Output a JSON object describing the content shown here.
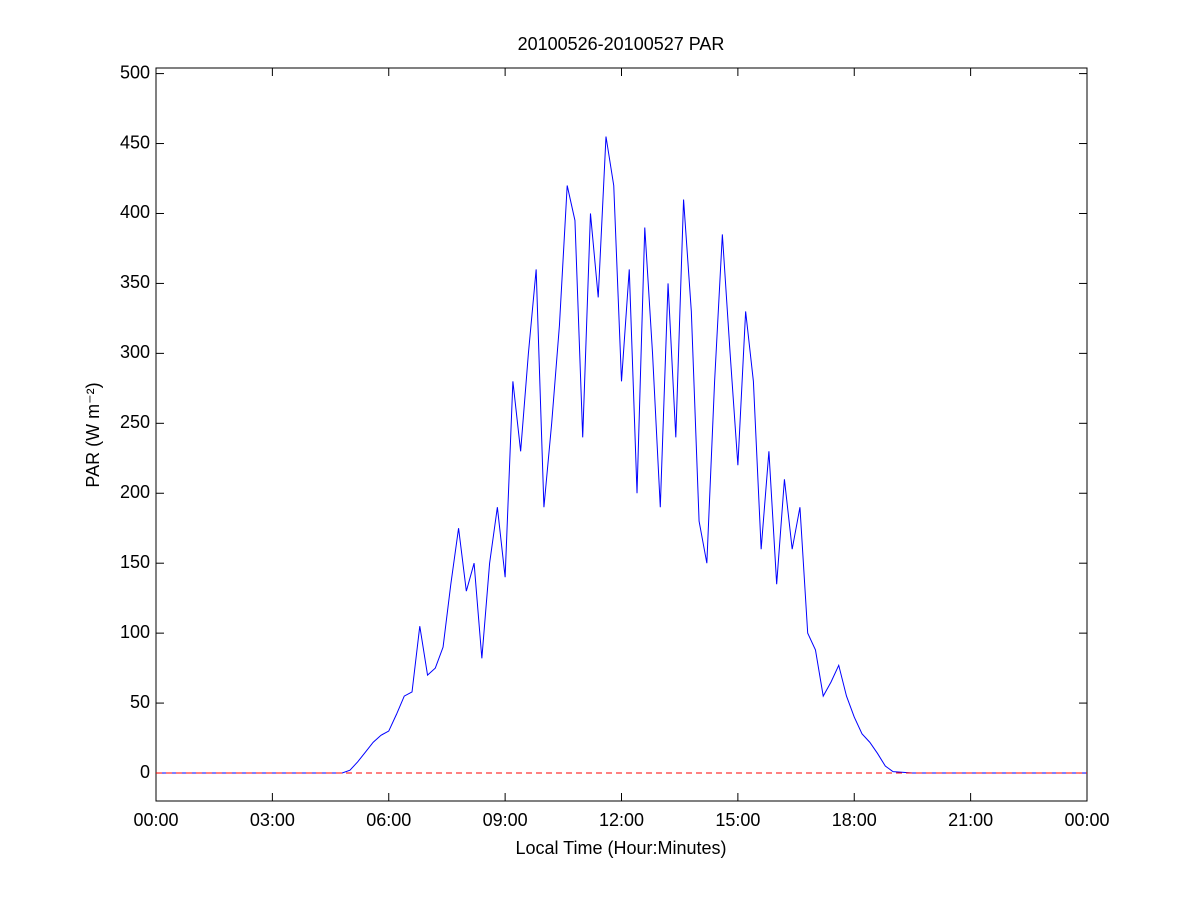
{
  "chart_data": {
    "type": "line",
    "title": "20100526-20100527 PAR",
    "xlabel": "Local Time (Hour:Minutes)",
    "ylabel": "PAR (W m⁻²)",
    "x": [
      0,
      1,
      2,
      3,
      4,
      4.6,
      4.8,
      5.0,
      5.2,
      5.4,
      5.6,
      5.8,
      6.0,
      6.2,
      6.4,
      6.6,
      6.8,
      7.0,
      7.2,
      7.4,
      7.6,
      7.8,
      8.0,
      8.2,
      8.4,
      8.6,
      8.8,
      9.0,
      9.2,
      9.4,
      9.6,
      9.8,
      10.0,
      10.2,
      10.4,
      10.6,
      10.8,
      11.0,
      11.2,
      11.4,
      11.6,
      11.8,
      12.0,
      12.2,
      12.4,
      12.6,
      12.8,
      13.0,
      13.2,
      13.4,
      13.6,
      13.8,
      14.0,
      14.2,
      14.4,
      14.6,
      14.8,
      15.0,
      15.2,
      15.4,
      15.6,
      15.8,
      16.0,
      16.2,
      16.4,
      16.6,
      16.8,
      17.0,
      17.2,
      17.4,
      17.6,
      17.8,
      18.0,
      18.2,
      18.4,
      18.6,
      18.8,
      19.0,
      19.5,
      20,
      21,
      22,
      23,
      24
    ],
    "series": [
      {
        "color": "#0000ff",
        "values": [
          0,
          0,
          0,
          0,
          0,
          0,
          0,
          2,
          8,
          15,
          22,
          27,
          30,
          42,
          55,
          58,
          105,
          70,
          75,
          90,
          135,
          175,
          130,
          150,
          82,
          150,
          190,
          140,
          280,
          230,
          300,
          360,
          190,
          250,
          320,
          420,
          395,
          240,
          400,
          340,
          455,
          420,
          280,
          360,
          200,
          390,
          300,
          190,
          350,
          240,
          410,
          330,
          180,
          150,
          280,
          385,
          300,
          220,
          330,
          280,
          160,
          230,
          135,
          210,
          160,
          190,
          100,
          88,
          55,
          65,
          77,
          55,
          40,
          28,
          22,
          14,
          5,
          1,
          0,
          0,
          0,
          0,
          0,
          0
        ]
      }
    ],
    "reference_line": {
      "value": 0,
      "color": "#ff0000",
      "dashed": true
    },
    "xlim": [
      0,
      24
    ],
    "xticks": [
      {
        "value": 0,
        "label": "00:00"
      },
      {
        "value": 3,
        "label": "03:00"
      },
      {
        "value": 6,
        "label": "06:00"
      },
      {
        "value": 9,
        "label": "09:00"
      },
      {
        "value": 12,
        "label": "12:00"
      },
      {
        "value": 15,
        "label": "15:00"
      },
      {
        "value": 18,
        "label": "18:00"
      },
      {
        "value": 21,
        "label": "21:00"
      },
      {
        "value": 24,
        "label": "00:00"
      }
    ],
    "ylim": [
      -20,
      504
    ],
    "yticks": [
      0,
      50,
      100,
      150,
      200,
      250,
      300,
      350,
      400,
      450,
      500
    ],
    "grid": false
  }
}
